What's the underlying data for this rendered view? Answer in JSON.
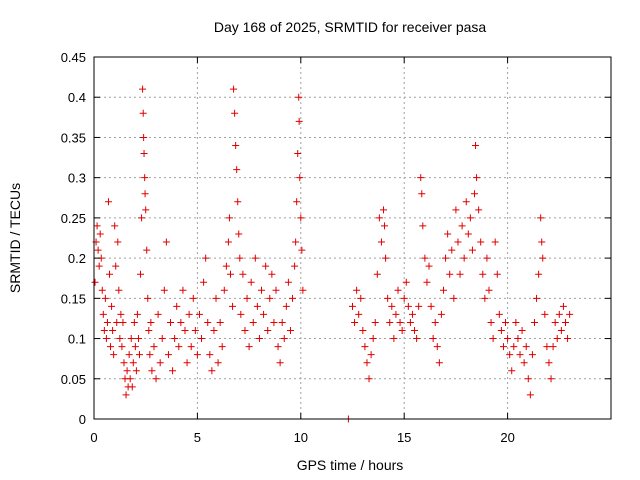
{
  "chart_data": {
    "type": "scatter",
    "title": "Day 168 of 2025, SRMTID for receiver pasa",
    "xlabel": "GPS time / hours",
    "ylabel": "SRMTID / TECUs",
    "xlim": [
      0,
      25
    ],
    "ylim": [
      0,
      0.45
    ],
    "xticks": [
      0,
      5,
      10,
      15,
      20
    ],
    "xtick_labels": [
      "0",
      "5",
      "10",
      "15",
      "20"
    ],
    "yticks": [
      0,
      0.05,
      0.1,
      0.15,
      0.2,
      0.25,
      0.3,
      0.35,
      0.4,
      0.45
    ],
    "ytick_labels": [
      "0",
      "0.05",
      "0.1",
      "0.15",
      "0.2",
      "0.25",
      "0.3",
      "0.35",
      "0.4",
      "0.45"
    ],
    "grid": true,
    "marker": "+",
    "color": "#e00000",
    "series": [
      {
        "name": "SRMTID",
        "points": [
          [
            0.05,
            0.17
          ],
          [
            0.1,
            0.22
          ],
          [
            0.15,
            0.24
          ],
          [
            0.2,
            0.21
          ],
          [
            0.25,
            0.19
          ],
          [
            0.3,
            0.23
          ],
          [
            0.35,
            0.2
          ],
          [
            0.4,
            0.16
          ],
          [
            0.45,
            0.13
          ],
          [
            0.5,
            0.11
          ],
          [
            0.55,
            0.15
          ],
          [
            0.6,
            0.1
          ],
          [
            0.65,
            0.12
          ],
          [
            0.7,
            0.27
          ],
          [
            0.75,
            0.18
          ],
          [
            0.8,
            0.09
          ],
          [
            0.85,
            0.14
          ],
          [
            0.9,
            0.11
          ],
          [
            0.95,
            0.08
          ],
          [
            1.0,
            0.24
          ],
          [
            1.05,
            0.19
          ],
          [
            1.1,
            0.12
          ],
          [
            1.15,
            0.22
          ],
          [
            1.2,
            0.16
          ],
          [
            1.25,
            0.1
          ],
          [
            1.3,
            0.13
          ],
          [
            1.35,
            0.09
          ],
          [
            1.4,
            0.12
          ],
          [
            1.45,
            0.07
          ],
          [
            1.5,
            0.05
          ],
          [
            1.55,
            0.03
          ],
          [
            1.6,
            0.06
          ],
          [
            1.65,
            0.04
          ],
          [
            1.7,
            0.08
          ],
          [
            1.75,
            0.05
          ],
          [
            1.8,
            0.1
          ],
          [
            1.85,
            0.04
          ],
          [
            1.9,
            0.07
          ],
          [
            1.95,
            0.12
          ],
          [
            2.0,
            0.09
          ],
          [
            2.05,
            0.06
          ],
          [
            2.1,
            0.13
          ],
          [
            2.15,
            0.1
          ],
          [
            2.2,
            0.08
          ],
          [
            2.25,
            0.18
          ],
          [
            2.3,
            0.25
          ],
          [
            2.35,
            0.41
          ],
          [
            2.38,
            0.38
          ],
          [
            2.4,
            0.35
          ],
          [
            2.42,
            0.33
          ],
          [
            2.45,
            0.3
          ],
          [
            2.47,
            0.28
          ],
          [
            2.5,
            0.26
          ],
          [
            2.55,
            0.21
          ],
          [
            2.6,
            0.15
          ],
          [
            2.65,
            0.11
          ],
          [
            2.7,
            0.08
          ],
          [
            2.75,
            0.12
          ],
          [
            2.8,
            0.06
          ],
          [
            2.9,
            0.09
          ],
          [
            3.0,
            0.05
          ],
          [
            3.1,
            0.13
          ],
          [
            3.2,
            0.07
          ],
          [
            3.3,
            0.1
          ],
          [
            3.4,
            0.16
          ],
          [
            3.5,
            0.22
          ],
          [
            3.6,
            0.08
          ],
          [
            3.7,
            0.12
          ],
          [
            3.8,
            0.06
          ],
          [
            3.9,
            0.1
          ],
          [
            4.0,
            0.14
          ],
          [
            4.1,
            0.09
          ],
          [
            4.2,
            0.12
          ],
          [
            4.3,
            0.16
          ],
          [
            4.4,
            0.11
          ],
          [
            4.5,
            0.07
          ],
          [
            4.6,
            0.13
          ],
          [
            4.7,
            0.09
          ],
          [
            4.8,
            0.15
          ],
          [
            4.9,
            0.11
          ],
          [
            5.0,
            0.08
          ],
          [
            5.1,
            0.13
          ],
          [
            5.2,
            0.1
          ],
          [
            5.3,
            0.17
          ],
          [
            5.4,
            0.2
          ],
          [
            5.5,
            0.12
          ],
          [
            5.6,
            0.08
          ],
          [
            5.7,
            0.06
          ],
          [
            5.8,
            0.11
          ],
          [
            5.9,
            0.15
          ],
          [
            6.0,
            0.07
          ],
          [
            6.1,
            0.12
          ],
          [
            6.2,
            0.09
          ],
          [
            6.3,
            0.16
          ],
          [
            6.4,
            0.19
          ],
          [
            6.5,
            0.22
          ],
          [
            6.55,
            0.25
          ],
          [
            6.6,
            0.18
          ],
          [
            6.7,
            0.14
          ],
          [
            6.75,
            0.41
          ],
          [
            6.8,
            0.38
          ],
          [
            6.85,
            0.34
          ],
          [
            6.9,
            0.31
          ],
          [
            6.95,
            0.27
          ],
          [
            7.0,
            0.23
          ],
          [
            7.05,
            0.2
          ],
          [
            7.1,
            0.13
          ],
          [
            7.2,
            0.18
          ],
          [
            7.3,
            0.11
          ],
          [
            7.4,
            0.15
          ],
          [
            7.5,
            0.09
          ],
          [
            7.6,
            0.17
          ],
          [
            7.7,
            0.12
          ],
          [
            7.8,
            0.2
          ],
          [
            7.9,
            0.14
          ],
          [
            8.0,
            0.1
          ],
          [
            8.1,
            0.16
          ],
          [
            8.2,
            0.13
          ],
          [
            8.3,
            0.19
          ],
          [
            8.4,
            0.11
          ],
          [
            8.5,
            0.15
          ],
          [
            8.6,
            0.18
          ],
          [
            8.7,
            0.12
          ],
          [
            8.8,
            0.16
          ],
          [
            8.9,
            0.09
          ],
          [
            9.0,
            0.07
          ],
          [
            9.1,
            0.12
          ],
          [
            9.2,
            0.1
          ],
          [
            9.3,
            0.14
          ],
          [
            9.4,
            0.17
          ],
          [
            9.5,
            0.11
          ],
          [
            9.6,
            0.15
          ],
          [
            9.7,
            0.19
          ],
          [
            9.75,
            0.22
          ],
          [
            9.8,
            0.27
          ],
          [
            9.85,
            0.33
          ],
          [
            9.9,
            0.4
          ],
          [
            9.92,
            0.37
          ],
          [
            9.95,
            0.3
          ],
          [
            10.0,
            0.25
          ],
          [
            10.05,
            0.21
          ],
          [
            10.1,
            0.16
          ],
          [
            12.3,
            0.0
          ],
          [
            12.5,
            0.14
          ],
          [
            12.6,
            0.12
          ],
          [
            12.7,
            0.16
          ],
          [
            12.8,
            0.13
          ],
          [
            12.9,
            0.15
          ],
          [
            13.0,
            0.11
          ],
          [
            13.1,
            0.09
          ],
          [
            13.2,
            0.07
          ],
          [
            13.3,
            0.05
          ],
          [
            13.4,
            0.08
          ],
          [
            13.5,
            0.1
          ],
          [
            13.6,
            0.12
          ],
          [
            13.7,
            0.18
          ],
          [
            13.8,
            0.25
          ],
          [
            13.9,
            0.22
          ],
          [
            14.0,
            0.26
          ],
          [
            14.05,
            0.24
          ],
          [
            14.1,
            0.2
          ],
          [
            14.2,
            0.15
          ],
          [
            14.3,
            0.12
          ],
          [
            14.4,
            0.14
          ],
          [
            14.5,
            0.1
          ],
          [
            14.6,
            0.13
          ],
          [
            14.7,
            0.16
          ],
          [
            14.8,
            0.12
          ],
          [
            14.9,
            0.11
          ],
          [
            15.0,
            0.15
          ],
          [
            15.1,
            0.17
          ],
          [
            15.2,
            0.14
          ],
          [
            15.3,
            0.12
          ],
          [
            15.4,
            0.13
          ],
          [
            15.5,
            0.11
          ],
          [
            15.6,
            0.1
          ],
          [
            15.7,
            0.14
          ],
          [
            15.8,
            0.3
          ],
          [
            15.85,
            0.28
          ],
          [
            15.9,
            0.24
          ],
          [
            16.0,
            0.2
          ],
          [
            16.1,
            0.17
          ],
          [
            16.2,
            0.19
          ],
          [
            16.3,
            0.14
          ],
          [
            16.4,
            0.1
          ],
          [
            16.5,
            0.12
          ],
          [
            16.6,
            0.09
          ],
          [
            16.7,
            0.07
          ],
          [
            16.8,
            0.13
          ],
          [
            16.9,
            0.16
          ],
          [
            17.0,
            0.2
          ],
          [
            17.1,
            0.23
          ],
          [
            17.2,
            0.18
          ],
          [
            17.3,
            0.21
          ],
          [
            17.4,
            0.15
          ],
          [
            17.5,
            0.26
          ],
          [
            17.6,
            0.22
          ],
          [
            17.7,
            0.18
          ],
          [
            17.8,
            0.24
          ],
          [
            17.9,
            0.2
          ],
          [
            18.0,
            0.27
          ],
          [
            18.1,
            0.23
          ],
          [
            18.2,
            0.25
          ],
          [
            18.3,
            0.21
          ],
          [
            18.4,
            0.28
          ],
          [
            18.45,
            0.34
          ],
          [
            18.5,
            0.3
          ],
          [
            18.6,
            0.26
          ],
          [
            18.7,
            0.22
          ],
          [
            18.8,
            0.18
          ],
          [
            18.9,
            0.15
          ],
          [
            19.0,
            0.2
          ],
          [
            19.1,
            0.16
          ],
          [
            19.2,
            0.12
          ],
          [
            19.3,
            0.1
          ],
          [
            19.4,
            0.22
          ],
          [
            19.5,
            0.18
          ],
          [
            19.6,
            0.13
          ],
          [
            19.7,
            0.11
          ],
          [
            19.8,
            0.09
          ],
          [
            19.9,
            0.12
          ],
          [
            20.0,
            0.1
          ],
          [
            20.1,
            0.08
          ],
          [
            20.2,
            0.06
          ],
          [
            20.3,
            0.09
          ],
          [
            20.4,
            0.12
          ],
          [
            20.5,
            0.1
          ],
          [
            20.6,
            0.08
          ],
          [
            20.7,
            0.11
          ],
          [
            20.8,
            0.07
          ],
          [
            20.9,
            0.09
          ],
          [
            21.0,
            0.05
          ],
          [
            21.1,
            0.03
          ],
          [
            21.2,
            0.08
          ],
          [
            21.3,
            0.12
          ],
          [
            21.4,
            0.15
          ],
          [
            21.5,
            0.18
          ],
          [
            21.6,
            0.25
          ],
          [
            21.65,
            0.22
          ],
          [
            21.7,
            0.2
          ],
          [
            21.8,
            0.13
          ],
          [
            21.9,
            0.09
          ],
          [
            22.0,
            0.07
          ],
          [
            22.1,
            0.05
          ],
          [
            22.2,
            0.09
          ],
          [
            22.3,
            0.12
          ],
          [
            22.4,
            0.1
          ],
          [
            22.5,
            0.13
          ],
          [
            22.6,
            0.11
          ],
          [
            22.7,
            0.14
          ],
          [
            22.8,
            0.12
          ],
          [
            22.9,
            0.1
          ],
          [
            23.0,
            0.13
          ]
        ]
      }
    ]
  }
}
